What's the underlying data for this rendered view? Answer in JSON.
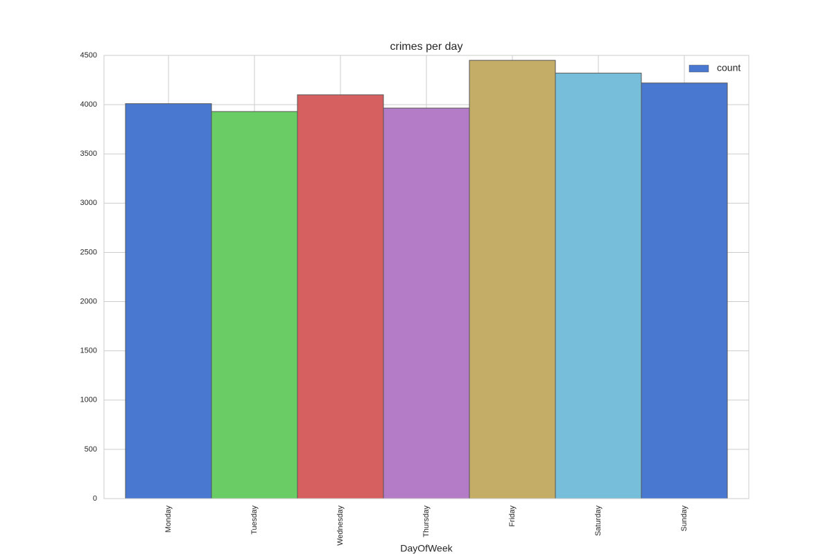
{
  "chart_data": {
    "type": "bar",
    "title": "crimes per day",
    "x_label": "DayOfWeek",
    "categories": [
      "Monday",
      "Tuesday",
      "Wednesday",
      "Thursday",
      "Friday",
      "Saturday",
      "Sunday"
    ],
    "series": [
      {
        "name": "count",
        "color": "#4878cf",
        "colors": [
          "#4878cf",
          "#6acc65",
          "#d65f5f",
          "#b47cc7",
          "#c4ad66",
          "#77bedb",
          "#4878cf"
        ],
        "values": [
          4010,
          3930,
          4100,
          3965,
          4450,
          4320,
          4220
        ]
      }
    ],
    "ylim": [
      0,
      4500
    ],
    "yticks": [
      0,
      500,
      1000,
      1500,
      2000,
      2500,
      3000,
      3500,
      4000,
      4500
    ],
    "grid": true,
    "legend": "upper-right"
  }
}
